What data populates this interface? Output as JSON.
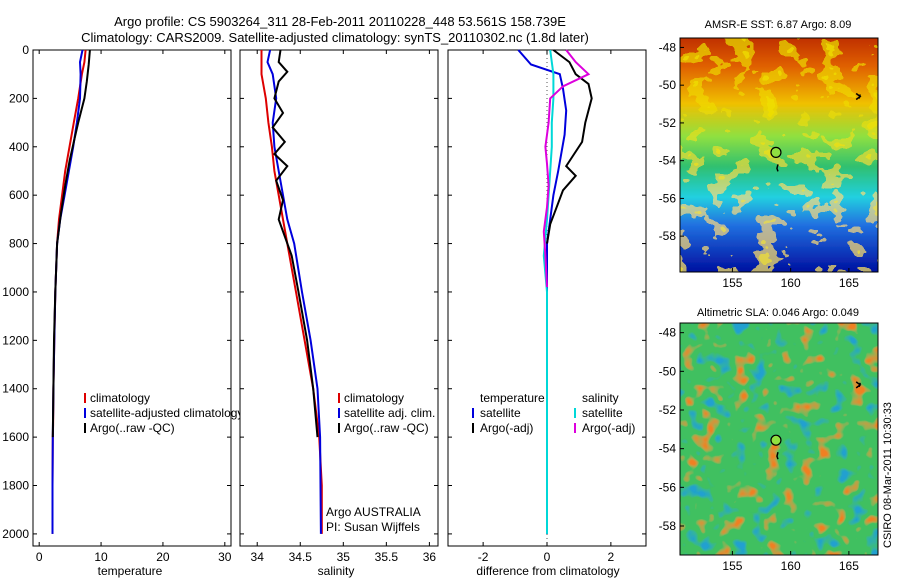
{
  "header": {
    "title_line1": "Argo profile: CS 5903264_311 28-Feb-2011 20110228_448 53.561S 158.739E",
    "title_line2": "Climatology: CARS2009. Satellite-adjusted climatology: synTS_20110302.nc (1.8d later)"
  },
  "watermark": "CSIRO 08-Mar-2011 10:30:33",
  "colors": {
    "climatology": "#dd0000",
    "satellite": "#0000dd",
    "argo": "#000000",
    "satellite_salinity": "#00d8d8",
    "argo_salinity": "#dd00dd"
  },
  "chart_data": [
    {
      "type": "line",
      "id": "temperature",
      "xlabel": "temperature",
      "xlim": [
        -1,
        31
      ],
      "ylim": [
        2050,
        0
      ],
      "xticks": [
        0,
        10,
        20,
        30
      ],
      "yticks": [
        0,
        200,
        400,
        600,
        800,
        1000,
        1200,
        1400,
        1600,
        1800,
        2000
      ],
      "legend": {
        "placement": "lower-right",
        "entries": [
          "climatology",
          "satellite-adjusted climatology",
          "Argo(..raw -QC)"
        ]
      },
      "series": [
        {
          "name": "climatology",
          "color": "#dd0000",
          "x": [
            7.5,
            7.3,
            6.9,
            6.3,
            5.6,
            4.9,
            4.2,
            3.7,
            3.2,
            2.9,
            2.6,
            2.45,
            2.3,
            2.25,
            2.2,
            2.15,
            2.15
          ],
          "y": [
            0,
            50,
            100,
            200,
            300,
            400,
            500,
            600,
            700,
            800,
            1000,
            1200,
            1400,
            1550,
            1600,
            1800,
            2000
          ]
        },
        {
          "name": "satellite-adjusted climatology",
          "color": "#0000dd",
          "x": [
            7.0,
            6.6,
            6.7,
            6.6,
            6.1,
            5.5,
            4.8,
            4.1,
            3.4,
            2.9,
            2.6,
            2.45,
            2.3,
            2.2,
            2.15,
            2.15
          ],
          "y": [
            0,
            50,
            100,
            200,
            300,
            400,
            500,
            600,
            700,
            800,
            1000,
            1200,
            1400,
            1600,
            1800,
            2000
          ]
        },
        {
          "name": "Argo(..raw -QC)",
          "color": "#000000",
          "x": [
            8.2,
            8.0,
            7.7,
            7.3,
            6.8,
            6.3,
            5.6,
            4.9,
            4.2,
            3.5,
            2.9,
            2.6,
            2.4,
            2.3,
            2.2
          ],
          "y": [
            0,
            60,
            130,
            200,
            250,
            300,
            380,
            460,
            560,
            680,
            800,
            1000,
            1200,
            1400,
            1600
          ]
        }
      ]
    },
    {
      "type": "line",
      "id": "salinity",
      "xlabel": "salinity",
      "xlim": [
        33.8,
        36.1
      ],
      "ylim": [
        2050,
        0
      ],
      "xticks": [
        34,
        34.5,
        35,
        35.5,
        36
      ],
      "legend": {
        "placement": "lower-right",
        "entries": [
          "climatology",
          "satellite adj. clim.",
          "Argo(..raw -QC)"
        ]
      },
      "annotations": [
        "Argo AUSTRALIA",
        "PI: Susan Wijffels"
      ],
      "series": [
        {
          "name": "climatology",
          "color": "#dd0000",
          "x": [
            34.05,
            34.05,
            34.1,
            34.13,
            34.17,
            34.2,
            34.25,
            34.3,
            34.35,
            34.45,
            34.55,
            34.65,
            34.72,
            34.75,
            34.75
          ],
          "y": [
            0,
            100,
            200,
            300,
            400,
            500,
            600,
            700,
            800,
            1000,
            1200,
            1400,
            1600,
            1800,
            2000
          ]
        },
        {
          "name": "satellite adj. clim.",
          "color": "#0000dd",
          "x": [
            34.15,
            34.12,
            34.18,
            34.22,
            34.18,
            34.2,
            34.25,
            34.3,
            34.35,
            34.43,
            34.52,
            34.62,
            34.7,
            34.73,
            34.74
          ],
          "y": [
            0,
            50,
            100,
            200,
            300,
            400,
            500,
            600,
            700,
            800,
            1000,
            1200,
            1400,
            1600,
            2000
          ]
        },
        {
          "name": "Argo(..raw -QC)",
          "color": "#000000",
          "x": [
            34.27,
            34.25,
            34.35,
            34.25,
            34.2,
            34.3,
            34.18,
            34.32,
            34.2,
            34.35,
            34.22,
            34.3,
            34.25,
            34.4,
            34.48,
            34.58,
            34.65,
            34.7
          ],
          "y": [
            0,
            50,
            90,
            130,
            200,
            260,
            320,
            380,
            430,
            480,
            540,
            620,
            700,
            850,
            1000,
            1200,
            1400,
            1600
          ]
        }
      ]
    },
    {
      "type": "line",
      "id": "difference",
      "xlabel": "difference from climatology",
      "xlim": [
        -3.1,
        3.1
      ],
      "ylim": [
        2050,
        0
      ],
      "xticks": [
        -2,
        0,
        2
      ],
      "legend": {
        "placement": "lower-center",
        "entries": [
          "temperature",
          "satellite",
          "Argo(-adj)",
          "salinity",
          "satellite",
          "Argo(-adj)"
        ]
      },
      "series": [
        {
          "name": "temperature satellite",
          "color": "#0000dd",
          "x": [
            -0.9,
            -0.5,
            0.4,
            0.5,
            0.6,
            0.55,
            0.35,
            0.2,
            0.1,
            0.0,
            0.0,
            0.0,
            0.0,
            0.0
          ],
          "y": [
            0,
            60,
            100,
            160,
            250,
            350,
            500,
            600,
            700,
            800,
            1000,
            1400,
            1800,
            2000
          ]
        },
        {
          "name": "temperature Argo(-adj)",
          "color": "#000000",
          "x": [
            0.2,
            0.7,
            0.9,
            1.3,
            1.4,
            1.2,
            1.1,
            0.8,
            0.6,
            0.9,
            0.5,
            0.3,
            0.1,
            0.0
          ],
          "y": [
            0,
            50,
            100,
            140,
            200,
            300,
            380,
            440,
            480,
            520,
            580,
            650,
            720,
            800
          ]
        },
        {
          "name": "salinity satellite",
          "color": "#00d8d8",
          "x": [
            0.1,
            0.15,
            0.2,
            0.2,
            0.15,
            0.15,
            0.1,
            0.05,
            0.0,
            -0.1,
            0.0,
            0.0,
            0.0,
            0.0
          ],
          "y": [
            0,
            50,
            100,
            200,
            300,
            400,
            500,
            600,
            700,
            850,
            1000,
            1400,
            1800,
            2000
          ]
        },
        {
          "name": "salinity Argo(-adj)",
          "color": "#dd00dd",
          "x": [
            0.6,
            0.9,
            1.3,
            0.5,
            0.1,
            0.05,
            0.0,
            -0.05,
            0.0,
            0.05,
            0.0,
            -0.1,
            -0.05,
            0.0
          ],
          "y": [
            0,
            50,
            100,
            150,
            200,
            300,
            350,
            400,
            470,
            560,
            650,
            750,
            850,
            980
          ]
        }
      ]
    },
    {
      "type": "heatmap",
      "id": "sst_map",
      "title": "AMSR-E SST: 6.87 Argo: 8.09",
      "xlim": [
        150.5,
        167.5
      ],
      "ylim": [
        -59.9,
        -47.5
      ],
      "xticks": [
        155,
        160,
        165
      ],
      "yticks": [
        -48,
        -50,
        -52,
        -54,
        -56,
        -58
      ],
      "marker": {
        "lon": 158.739,
        "lat": -53.561
      }
    },
    {
      "type": "heatmap",
      "id": "sla_map",
      "title": "Altimetric SLA: 0.046 Argo: 0.049",
      "xlim": [
        150.5,
        167.5
      ],
      "ylim": [
        -59.5,
        -47.5
      ],
      "xticks": [
        155,
        160,
        165
      ],
      "yticks": [
        -48,
        -50,
        -52,
        -54,
        -56,
        -58
      ],
      "marker": {
        "lon": 158.739,
        "lat": -53.561
      }
    }
  ]
}
